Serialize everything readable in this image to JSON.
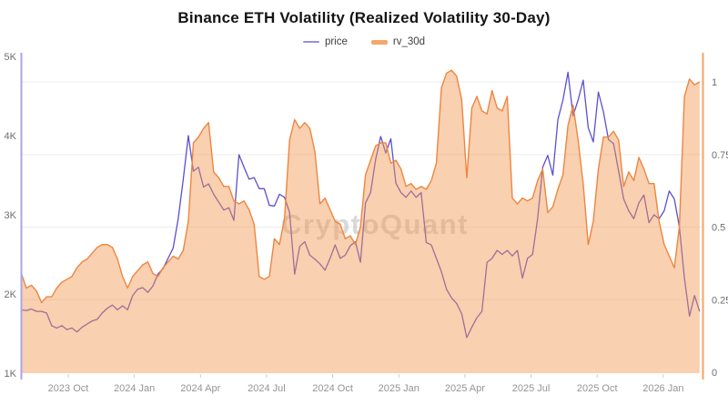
{
  "title": "Binance ETH Volatility (Realized Volatility 30-Day)",
  "watermark": "CryptoQuant",
  "legend": [
    {
      "label": "price"
    },
    {
      "label": "rv_30d"
    }
  ],
  "colors": {
    "price_line": "#5B4FD0",
    "price_legend_marker": "#978FE3",
    "rv_edge": "#ED8640",
    "rv_fill": "#F29650",
    "rv_fill_opacity": 0.45,
    "rv_legend_marker": "#F5A66B",
    "left_spine": "#ACA3E8",
    "right_spine": "#F3A467",
    "grid": "#EDEDED",
    "y_tick_text": "#6E6E6E",
    "x_tick_text": "#949494",
    "watermark_text": "#8A8A8A"
  },
  "chart_data": {
    "type": "line+area",
    "title": "Binance ETH Volatility (Realized Volatility 30-Day)",
    "x_start_date": "2023-07-28",
    "x_step_days": 7,
    "x_tick_labels": [
      "2023 Oct",
      "2024 Jan",
      "2024 Apr",
      "2024 Jul",
      "2024 Oct",
      "2025 Jan",
      "2025 Apr",
      "2025 Jul",
      "2025 Oct",
      "2026 Jan"
    ],
    "grid": true,
    "legend_position": "top",
    "y_left": {
      "series": "price",
      "unit": "K USD",
      "range": [
        1,
        5
      ],
      "ticks": [
        {
          "label": "1K",
          "value": 1
        },
        {
          "label": "2K",
          "value": 2
        },
        {
          "label": "3K",
          "value": 3
        },
        {
          "label": "4K",
          "value": 4
        },
        {
          "label": "5K",
          "value": 5
        }
      ]
    },
    "y_right": {
      "series": "rv_30d",
      "range": [
        0,
        1.1
      ],
      "ticks": [
        {
          "label": "0",
          "value": 0
        },
        {
          "label": "0.25",
          "value": 0.25
        },
        {
          "label": "0.5",
          "value": 0.5
        },
        {
          "label": "0.75",
          "value": 0.75
        },
        {
          "label": "1",
          "value": 1
        }
      ]
    },
    "series": [
      {
        "name": "price",
        "axis": "left",
        "style": "line",
        "values": [
          1.8,
          1.79,
          1.81,
          1.78,
          1.78,
          1.76,
          1.6,
          1.57,
          1.6,
          1.55,
          1.57,
          1.52,
          1.58,
          1.62,
          1.66,
          1.68,
          1.76,
          1.82,
          1.86,
          1.8,
          1.85,
          1.8,
          1.98,
          2.06,
          2.08,
          2.02,
          2.1,
          2.25,
          2.32,
          2.45,
          2.58,
          2.95,
          3.45,
          4.0,
          3.55,
          3.6,
          3.35,
          3.39,
          3.26,
          3.16,
          3.06,
          3.09,
          2.93,
          3.76,
          3.6,
          3.45,
          3.47,
          3.33,
          3.33,
          3.12,
          3.11,
          3.26,
          3.22,
          3.03,
          2.25,
          2.6,
          2.66,
          2.49,
          2.44,
          2.38,
          2.3,
          2.45,
          2.62,
          2.45,
          2.49,
          2.61,
          2.66,
          2.4,
          3.15,
          3.28,
          3.7,
          3.99,
          3.78,
          3.96,
          3.4,
          3.28,
          3.22,
          3.3,
          3.22,
          3.28,
          2.65,
          2.62,
          2.45,
          2.28,
          2.06,
          1.95,
          1.88,
          1.75,
          1.45,
          1.58,
          1.7,
          1.78,
          2.4,
          2.45,
          2.55,
          2.5,
          2.55,
          2.48,
          2.55,
          2.2,
          2.45,
          2.5,
          2.95,
          3.6,
          3.75,
          3.5,
          4.2,
          4.45,
          4.8,
          4.25,
          4.45,
          4.7,
          4.1,
          3.92,
          4.55,
          4.3,
          3.95,
          3.9,
          3.55,
          3.2,
          3.05,
          2.95,
          3.15,
          3.25,
          2.9,
          3.0,
          2.95,
          3.05,
          3.3,
          3.2,
          2.85,
          2.2,
          1.72,
          1.98,
          1.78
        ]
      },
      {
        "name": "rv_30d",
        "axis": "right",
        "style": "area",
        "values": [
          0.34,
          0.29,
          0.3,
          0.28,
          0.24,
          0.26,
          0.26,
          0.29,
          0.31,
          0.32,
          0.33,
          0.36,
          0.38,
          0.39,
          0.41,
          0.43,
          0.44,
          0.44,
          0.43,
          0.39,
          0.33,
          0.29,
          0.33,
          0.35,
          0.37,
          0.38,
          0.34,
          0.33,
          0.36,
          0.38,
          0.4,
          0.39,
          0.42,
          0.52,
          0.79,
          0.81,
          0.84,
          0.86,
          0.69,
          0.67,
          0.64,
          0.64,
          0.59,
          0.58,
          0.59,
          0.56,
          0.51,
          0.33,
          0.32,
          0.33,
          0.46,
          0.44,
          0.53,
          0.8,
          0.87,
          0.84,
          0.86,
          0.84,
          0.76,
          0.58,
          0.6,
          0.56,
          0.52,
          0.51,
          0.46,
          0.47,
          0.44,
          0.5,
          0.68,
          0.73,
          0.78,
          0.79,
          0.79,
          0.72,
          0.73,
          0.7,
          0.64,
          0.65,
          0.63,
          0.64,
          0.63,
          0.66,
          0.72,
          0.98,
          1.03,
          1.04,
          1.02,
          0.94,
          0.67,
          0.91,
          0.95,
          0.9,
          0.89,
          0.97,
          0.91,
          0.9,
          0.95,
          0.6,
          0.58,
          0.6,
          0.59,
          0.6,
          0.66,
          0.7,
          0.55,
          0.57,
          0.63,
          0.68,
          0.85,
          0.92,
          0.8,
          0.65,
          0.44,
          0.52,
          0.7,
          0.81,
          0.81,
          0.83,
          0.8,
          0.64,
          0.69,
          0.66,
          0.74,
          0.7,
          0.65,
          0.65,
          0.52,
          0.44,
          0.4,
          0.36,
          0.5,
          0.95,
          1.01,
          0.99,
          1.0
        ]
      }
    ]
  }
}
